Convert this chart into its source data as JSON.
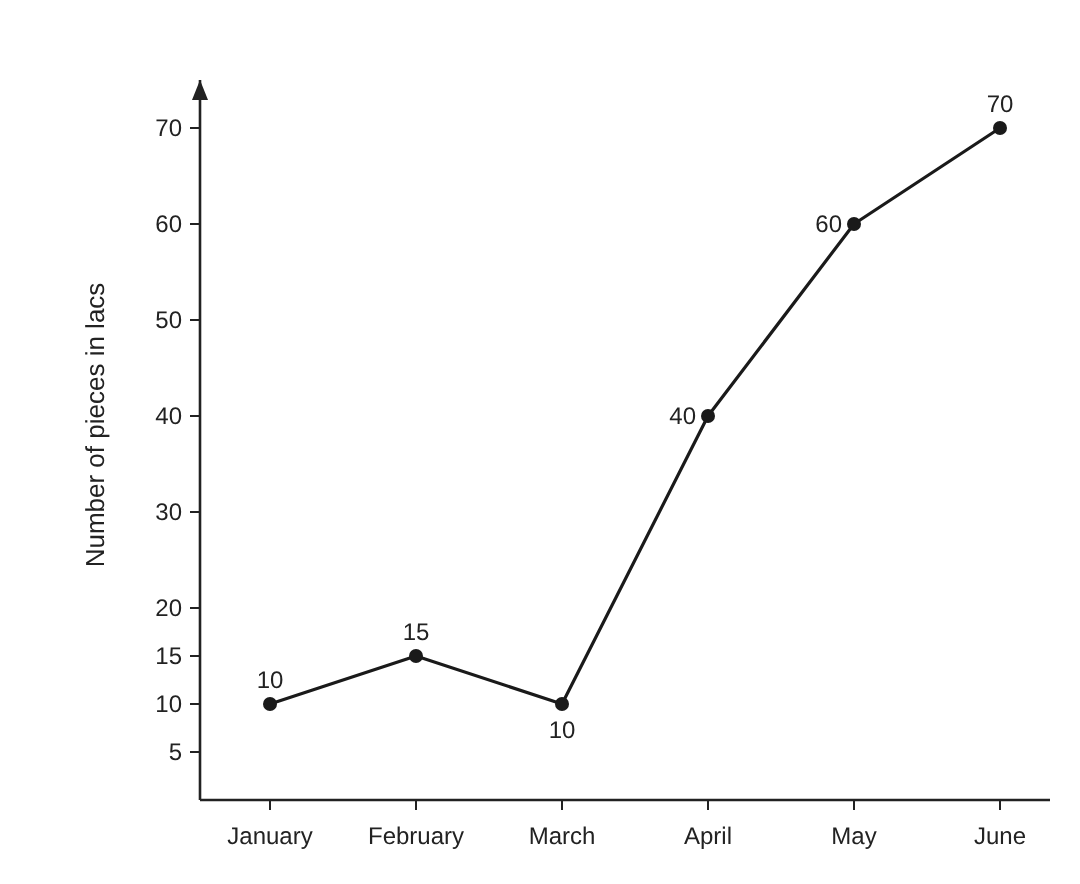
{
  "chart_data": {
    "type": "line",
    "ylabel": "Number of pieces in lacs",
    "categories": [
      "January",
      "February",
      "March",
      "April",
      "May",
      "June"
    ],
    "values": [
      10,
      15,
      10,
      40,
      60,
      70
    ],
    "color": "#1a1a1a",
    "ylim": [
      0,
      75
    ],
    "yticks": [
      5,
      10,
      15,
      20,
      30,
      40,
      50,
      60,
      70
    ],
    "grid": false,
    "marker": "circle",
    "line_style": "solid",
    "data_labels": true
  }
}
